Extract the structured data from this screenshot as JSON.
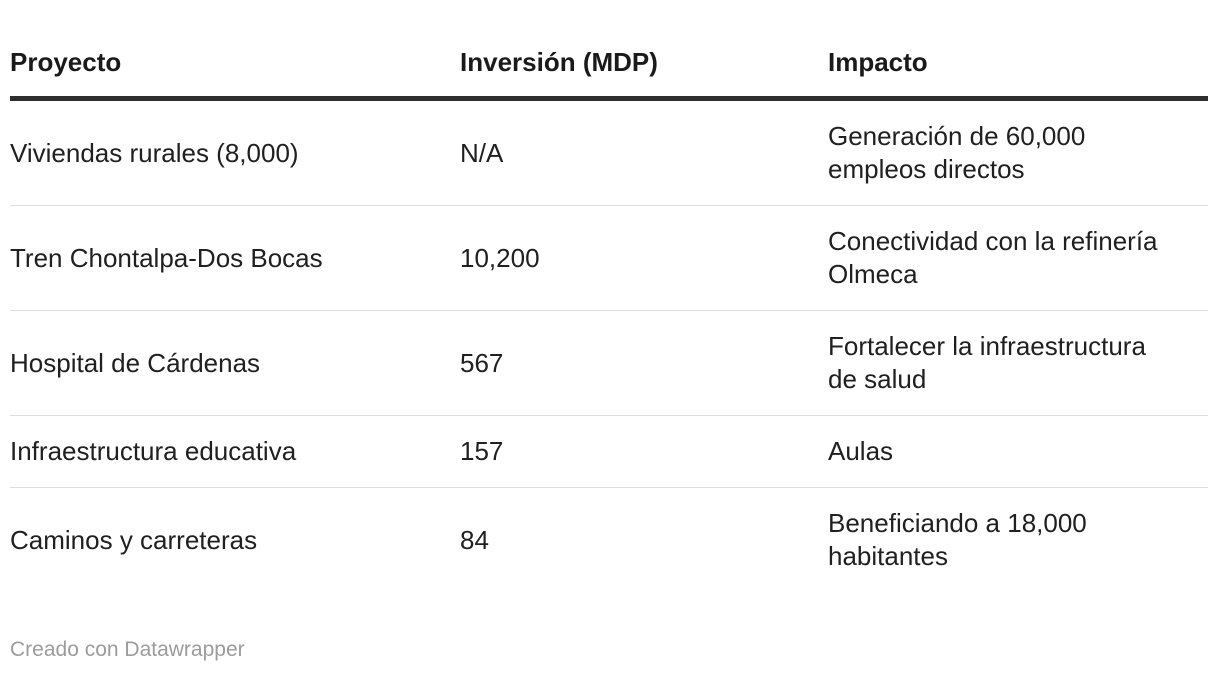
{
  "table": {
    "columns": [
      {
        "key": "proyecto",
        "label": "Proyecto"
      },
      {
        "key": "inversion",
        "label": "Inversión (MDP)"
      },
      {
        "key": "impacto",
        "label": "Impacto"
      }
    ],
    "rows": [
      {
        "proyecto": "Viviendas rurales (8,000)",
        "inversion": "N/A",
        "impacto": "Generación de 60,000 empleos directos"
      },
      {
        "proyecto": "Tren Chontalpa-Dos Bocas",
        "inversion": "10,200",
        "impacto": "Conectividad con la refinería Olmeca"
      },
      {
        "proyecto": "Hospital de Cárdenas",
        "inversion": "567",
        "impacto": "Fortalecer la infraestructura de salud"
      },
      {
        "proyecto": "Infraestructura educativa",
        "inversion": "157",
        "impacto": "Aulas"
      },
      {
        "proyecto": "Caminos y carreteras",
        "inversion": "84",
        "impacto": "Beneficiando a 18,000 habitantes"
      }
    ]
  },
  "footer": {
    "credit": "Creado con Datawrapper"
  },
  "colors": {
    "background": "#ffffff",
    "text": "#202020",
    "header_text": "#1a1a1a",
    "header_rule": "#2e2e2e",
    "row_divider": "#dedede",
    "credit_text": "#9c9c9c"
  },
  "chart_data": {
    "type": "table",
    "title": "",
    "columns": [
      "Proyecto",
      "Inversión (MDP)",
      "Impacto"
    ],
    "rows": [
      [
        "Viviendas rurales (8,000)",
        "N/A",
        "Generación de 60,000 empleos directos"
      ],
      [
        "Tren Chontalpa-Dos Bocas",
        "10,200",
        "Conectividad con la refinería Olmeca"
      ],
      [
        "Hospital de Cárdenas",
        "567",
        "Fortalecer la infraestructura de salud"
      ],
      [
        "Infraestructura educativa",
        "157",
        "Aulas"
      ],
      [
        "Caminos y carreteras",
        "84",
        "Beneficiando a 18,000 habitantes"
      ]
    ],
    "inversion_values_mdp": [
      null,
      10200,
      567,
      157,
      84
    ],
    "attribution": "Creado con Datawrapper"
  }
}
